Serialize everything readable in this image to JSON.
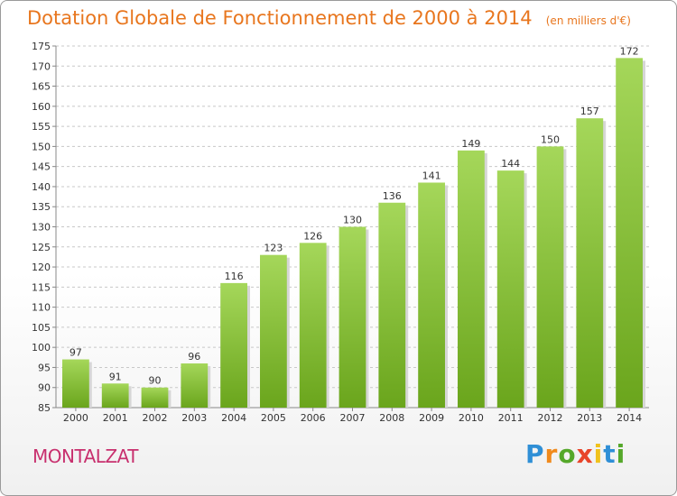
{
  "chart_data": {
    "type": "bar",
    "title": "Dotation Globale de Fonctionnement de 2000 à 2014",
    "subtitle": "(en milliers d'€)",
    "categories": [
      "2000",
      "2001",
      "2002",
      "2003",
      "2004",
      "2005",
      "2006",
      "2007",
      "2008",
      "2009",
      "2010",
      "2011",
      "2012",
      "2013",
      "2014"
    ],
    "values": [
      97,
      91,
      90,
      96,
      116,
      123,
      126,
      130,
      136,
      141,
      149,
      144,
      150,
      157,
      172
    ],
    "ylim": [
      85,
      175
    ],
    "yticks": [
      85,
      90,
      95,
      100,
      105,
      110,
      115,
      120,
      125,
      130,
      135,
      140,
      145,
      150,
      155,
      160,
      165,
      170,
      175
    ],
    "grid": true,
    "colors": {
      "bar_light": "#a5d75a",
      "bar_dark": "#6aa51c",
      "title": "#e8761e",
      "grid": "#c8c8c8"
    }
  },
  "footer": {
    "commune": "MONTALZAT",
    "logo_letters": [
      "P",
      "r",
      "o",
      "x",
      "i",
      "t",
      "i"
    ],
    "logo_colors": [
      "#2f8fd6",
      "#f08a1c",
      "#55a82a",
      "#e8442a",
      "#f0c21c",
      "#2f8fd6",
      "#55a82a"
    ]
  }
}
